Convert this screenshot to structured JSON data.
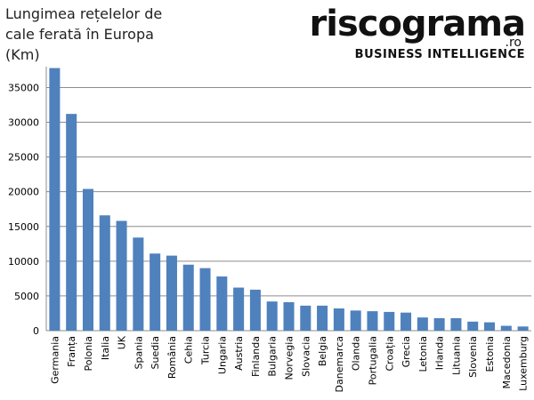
{
  "logo": {
    "name": "riscograma",
    "domain": ".ro",
    "tagline": "BUSINESS INTELLIGENCE"
  },
  "chart_data": {
    "type": "bar",
    "title": "Lungimea rețelelor de cale ferată în Europa (Km)",
    "categories": [
      "Germania",
      "Franța",
      "Polonia",
      "Italia",
      "UK",
      "Spania",
      "Suedia",
      "România",
      "Cehia",
      "Turcia",
      "Ungaria",
      "Austria",
      "Finlanda",
      "Bulgaria",
      "Norvegia",
      "Slovacia",
      "Belgia",
      "Danemarca",
      "Olanda",
      "Portugalia",
      "Croația",
      "Grecia",
      "Letonia",
      "Irlanda",
      "Lituania",
      "Slovenia",
      "Estonia",
      "Macedonia",
      "Luxemburg"
    ],
    "values": [
      37800,
      31200,
      20400,
      16600,
      15800,
      13400,
      11100,
      10800,
      9500,
      9000,
      7800,
      6200,
      5900,
      4200,
      4100,
      3600,
      3600,
      3200,
      2900,
      2800,
      2700,
      2600,
      1900,
      1800,
      1800,
      1300,
      1200,
      700,
      600
    ],
    "color": "#4f81bd",
    "ylim": [
      0,
      38000
    ],
    "yticks": [
      0,
      5000,
      10000,
      15000,
      20000,
      25000,
      30000,
      35000
    ],
    "grid": true
  }
}
